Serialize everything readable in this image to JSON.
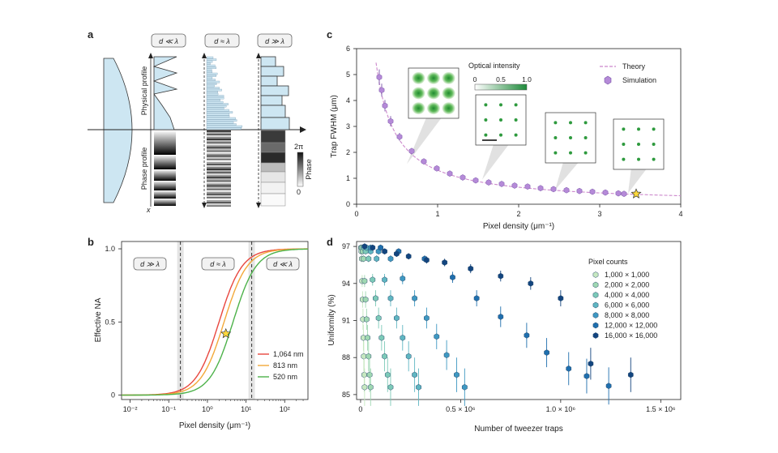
{
  "panel_labels": {
    "a": "a",
    "b": "b",
    "c": "c",
    "d": "d"
  },
  "panel_a": {
    "regimes": [
      "d ≪ λ",
      "d ≈ λ",
      "d ≫ λ"
    ],
    "physical_label": "Physical profile",
    "phase_label": "Phase profile",
    "x_label": "x",
    "phase_bar_title": "Phase",
    "phase_bar_top": "2π",
    "phase_bar_bottom": "0"
  },
  "chart_data": [
    {
      "panel": "b",
      "type": "line",
      "title": "",
      "xlabel": "Pixel density (μm⁻¹)",
      "ylabel": "Effective NA",
      "xscale": "log",
      "xlim": [
        0.006,
        400
      ],
      "ylim": [
        -0.03,
        1.05
      ],
      "xticks": [
        {
          "v": 0.01,
          "label": "10⁻²"
        },
        {
          "v": 0.1,
          "label": "10⁻¹"
        },
        {
          "v": 1,
          "label": "10⁰"
        },
        {
          "v": 10,
          "label": "10¹"
        },
        {
          "v": 100,
          "label": "10²"
        }
      ],
      "yticks": [
        {
          "v": 0,
          "label": "0"
        },
        {
          "v": 0.5,
          "label": "0.5"
        },
        {
          "v": 1,
          "label": "1.0"
        }
      ],
      "regime_boxes": [
        "d ≫ λ",
        "d ≈ λ",
        "d ≪ λ"
      ],
      "vlines": [
        0.2,
        14
      ],
      "series": [
        {
          "name": "1,064 nm",
          "color": "#e8473f",
          "x50": 2.0,
          "k": 1.0
        },
        {
          "name": "813 nm",
          "color": "#f3a93a",
          "x50": 2.7,
          "k": 1.0
        },
        {
          "name": "520 nm",
          "color": "#4db24a",
          "x50": 4.6,
          "k": 1.0
        }
      ],
      "star": {
        "x": 3.0,
        "y": 0.42
      }
    },
    {
      "panel": "c",
      "type": "scatter",
      "xlabel": "Pixel density (μm⁻¹)",
      "ylabel": "Trap FWHM (μm)",
      "xlim": [
        0,
        4
      ],
      "ylim": [
        0,
        6
      ],
      "xticks": [
        0,
        1,
        2,
        3,
        4
      ],
      "yticks": [
        0,
        1,
        2,
        3,
        4,
        5,
        6
      ],
      "theory": {
        "name": "Theory",
        "color": "#cc88cc",
        "coef": 1.31
      },
      "simulation": {
        "name": "Simulation",
        "color": "#b58ad8",
        "x": [
          0.28,
          0.31,
          0.35,
          0.42,
          0.53,
          0.68,
          0.83,
          0.99,
          1.15,
          1.31,
          1.47,
          1.63,
          1.79,
          1.95,
          2.11,
          2.27,
          2.43,
          2.59,
          2.75,
          2.91,
          3.07,
          3.23,
          3.3
        ],
        "y": [
          4.9,
          4.4,
          3.8,
          3.2,
          2.6,
          2.05,
          1.65,
          1.38,
          1.18,
          1.03,
          0.92,
          0.84,
          0.78,
          0.72,
          0.68,
          0.62,
          0.58,
          0.54,
          0.51,
          0.48,
          0.45,
          0.42,
          0.4
        ],
        "err": [
          0.3,
          0.25,
          0.22,
          0.2,
          0.15,
          0.12,
          0.1,
          0.08,
          0.06,
          0.05,
          0.04,
          0.04,
          0.03,
          0.03,
          0.03,
          0.03,
          0.03,
          0.03,
          0.03,
          0.03,
          0.03,
          0.03,
          0.03
        ]
      },
      "star": {
        "x": 3.45,
        "y": 0.4
      },
      "colorbar": {
        "title": "Optical intensity",
        "ticks": [
          "0",
          "0.5",
          "1.0"
        ]
      }
    },
    {
      "panel": "d",
      "type": "scatter",
      "xlabel": "Number of tweezer traps",
      "ylabel": "Uniformity (%)",
      "xlim": [
        -20000,
        1600000
      ],
      "ylim": [
        84.6,
        97.4
      ],
      "xticks": [
        {
          "v": 0,
          "label": "0"
        },
        {
          "v": 500000,
          "label": "0.5 × 10⁶"
        },
        {
          "v": 1000000,
          "label": "1.0 × 10⁶"
        },
        {
          "v": 1500000,
          "label": "1.5 × 10⁶"
        }
      ],
      "yticks": [
        85,
        88,
        91,
        94,
        97
      ],
      "legend_title": "Pixel counts",
      "series": [
        {
          "name": "1,000 × 1,000",
          "color": "#c6e8c0",
          "points": [
            [
              2000,
              96.9
            ],
            [
              4000,
              96.6
            ],
            [
              6000,
              96.0
            ],
            [
              8000,
              94.2
            ],
            [
              10000,
              92.7
            ],
            [
              12000,
              91.1
            ],
            [
              14000,
              89.6
            ],
            [
              16000,
              88.1
            ],
            [
              18000,
              86.6
            ],
            [
              20000,
              85.6
            ]
          ]
        },
        {
          "name": "2,000 × 2,000",
          "color": "#9fd8b2",
          "points": [
            [
              5000,
              96.9
            ],
            [
              10000,
              96.6
            ],
            [
              15000,
              96.0
            ],
            [
              20000,
              94.2
            ],
            [
              25000,
              92.7
            ],
            [
              30000,
              91.1
            ],
            [
              35000,
              89.6
            ],
            [
              40000,
              88.1
            ],
            [
              45000,
              86.6
            ],
            [
              50000,
              85.6
            ]
          ]
        },
        {
          "name": "4,000 × 4,000",
          "color": "#7ccab8",
          "points": [
            [
              15000,
              96.9
            ],
            [
              25000,
              96.6
            ],
            [
              40000,
              96.0
            ],
            [
              60000,
              94.3
            ],
            [
              75000,
              92.8
            ],
            [
              90000,
              91.2
            ],
            [
              105000,
              89.6
            ],
            [
              120000,
              88.1
            ],
            [
              135000,
              86.6
            ],
            [
              150000,
              85.6
            ]
          ]
        },
        {
          "name": "6,000 × 6,000",
          "color": "#5fb6c2",
          "points": [
            [
              30000,
              96.9
            ],
            [
              50000,
              96.6
            ],
            [
              80000,
              96.0
            ],
            [
              120000,
              94.3
            ],
            [
              150000,
              92.8
            ],
            [
              180000,
              91.2
            ],
            [
              210000,
              89.6
            ],
            [
              240000,
              88.1
            ],
            [
              270000,
              86.6
            ],
            [
              290000,
              85.6
            ]
          ]
        },
        {
          "name": "8,000 × 8,000",
          "color": "#3e98c2",
          "points": [
            [
              50000,
              96.9
            ],
            [
              90000,
              96.6
            ],
            [
              150000,
              96.0
            ],
            [
              210000,
              94.4
            ],
            [
              270000,
              92.8
            ],
            [
              330000,
              91.2
            ],
            [
              380000,
              89.7
            ],
            [
              430000,
              88.2
            ],
            [
              480000,
              86.6
            ],
            [
              520000,
              85.6
            ]
          ]
        },
        {
          "name": "12,000 × 12,000",
          "color": "#1f6fae",
          "points": [
            [
              100000,
              96.9
            ],
            [
              190000,
              96.6
            ],
            [
              320000,
              96.0
            ],
            [
              460000,
              94.5
            ],
            [
              580000,
              92.8
            ],
            [
              700000,
              91.3
            ],
            [
              830000,
              89.8
            ],
            [
              930000,
              88.4
            ],
            [
              1040000,
              87.1
            ],
            [
              1130000,
              86.5
            ],
            [
              1240000,
              85.7
            ]
          ]
        },
        {
          "name": "16,000 × 16,000",
          "color": "#13457f",
          "points": [
            [
              20000,
              97.0
            ],
            [
              60000,
              96.9
            ],
            [
              120000,
              96.6
            ],
            [
              180000,
              96.4
            ],
            [
              240000,
              96.2
            ],
            [
              330000,
              95.9
            ],
            [
              420000,
              95.7
            ],
            [
              550000,
              95.2
            ],
            [
              700000,
              94.6
            ],
            [
              850000,
              94.0
            ],
            [
              1000000,
              92.8
            ],
            [
              1150000,
              87.5
            ],
            [
              1350000,
              86.6
            ]
          ]
        }
      ]
    }
  ]
}
